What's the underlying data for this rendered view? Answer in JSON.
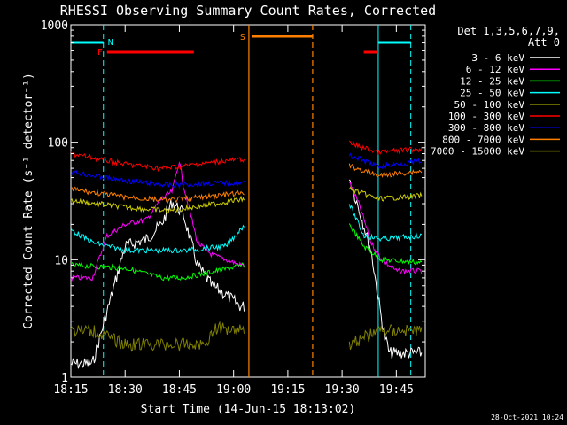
{
  "chart_data": {
    "type": "line",
    "title": "RHESSI Observing Summary Count Rates, Corrected",
    "xlabel": "Start Time (14-Jun-15 18:13:02)",
    "ylabel": "Corrected Count Rate (s⁻¹ detector⁻¹)",
    "y_scale": "log",
    "ylim": [
      1,
      1000
    ],
    "xlim": [
      "18:15",
      "19:53"
    ],
    "x_ticks": [
      "18:15",
      "18:30",
      "18:45",
      "19:00",
      "19:15",
      "19:30",
      "19:45"
    ],
    "y_ticks": [
      "1",
      "10",
      "100",
      "1000"
    ],
    "grid": false,
    "legend_position": "right",
    "legend_header": [
      "Det 1,3,5,6,7,9,",
      "Att 0"
    ],
    "timestamp": "28-Oct-2021 10:24",
    "annotations": [
      {
        "label": "N",
        "color": "#00ffff"
      },
      {
        "label": "F",
        "color": "#ff0000"
      },
      {
        "label": "S",
        "color": "#ff8000"
      }
    ],
    "data_gap": [
      "19:03",
      "19:32"
    ],
    "series": [
      {
        "name": "3 - 6 keV",
        "color": "#000000",
        "x": [
          "18:15",
          "18:21",
          "18:30",
          "18:33",
          "18:36",
          "18:40",
          "18:43",
          "18:46",
          "18:50",
          "18:54",
          "18:58",
          "19:02",
          "19:03",
          "19:32",
          "19:35",
          "19:38",
          "19:41",
          "19:43",
          "19:50",
          "19:52"
        ],
        "y": [
          1.3,
          1.3,
          13,
          14,
          15,
          20,
          31,
          25,
          9,
          6,
          5,
          4,
          4,
          50,
          25,
          12,
          3,
          1.6,
          1.6,
          1.6
        ]
      },
      {
        "name": "6 - 12 keV",
        "color": "#ff00ff",
        "x": [
          "18:15",
          "18:21",
          "18:25",
          "18:30",
          "18:33",
          "18:36",
          "18:40",
          "18:43",
          "18:45",
          "18:46",
          "18:50",
          "18:54",
          "18:58",
          "19:02",
          "19:03",
          "19:32",
          "19:35",
          "19:38",
          "19:41",
          "19:45",
          "19:52"
        ],
        "y": [
          7,
          7,
          16,
          20,
          21,
          22,
          33,
          38,
          70,
          45,
          14,
          11,
          10,
          9,
          9,
          46,
          28,
          14,
          10,
          8,
          8
        ]
      },
      {
        "name": "12 - 25 keV",
        "color": "#00ff00",
        "x": [
          "18:15",
          "18:30",
          "18:40",
          "18:46",
          "18:55",
          "19:03",
          "19:32",
          "19:36",
          "19:41",
          "19:52"
        ],
        "y": [
          9,
          8.5,
          7,
          7,
          8,
          9,
          20,
          13,
          10,
          9.5
        ]
      },
      {
        "name": "25 - 50 keV",
        "color": "#00ffff",
        "x": [
          "18:15",
          "18:21",
          "18:30",
          "18:40",
          "18:47",
          "18:58",
          "19:03",
          "19:32",
          "19:36",
          "19:41",
          "19:52"
        ],
        "y": [
          18,
          14,
          12,
          12,
          12,
          13,
          20,
          30,
          16,
          15,
          16
        ]
      },
      {
        "name": "50 - 100 keV",
        "color": "#cccc00",
        "x": [
          "18:15",
          "18:30",
          "18:42",
          "18:55",
          "19:03",
          "19:32",
          "19:40",
          "19:52"
        ],
        "y": [
          32,
          28,
          26,
          30,
          33,
          40,
          33,
          35
        ]
      },
      {
        "name": "100 - 300 keV",
        "color": "#ff0000",
        "x": [
          "18:15",
          "18:30",
          "18:40",
          "18:45",
          "18:48",
          "18:55",
          "19:03",
          "19:32",
          "19:40",
          "19:52"
        ],
        "y": [
          80,
          65,
          60,
          62,
          64,
          68,
          72,
          98,
          82,
          88
        ]
      },
      {
        "name": "300 - 800 keV",
        "color": "#0000ff",
        "x": [
          "18:15",
          "18:30",
          "18:42",
          "18:55",
          "19:03",
          "19:32",
          "19:40",
          "19:52"
        ],
        "y": [
          56,
          47,
          43,
          45,
          45,
          78,
          62,
          69
        ]
      },
      {
        "name": "800 - 7000 keV",
        "color": "#ff8000",
        "x": [
          "18:15",
          "18:30",
          "18:42",
          "18:55",
          "19:03",
          "19:32",
          "19:40",
          "19:52"
        ],
        "y": [
          40,
          34,
          32,
          35,
          37,
          63,
          52,
          57
        ]
      },
      {
        "name": "7000 - 15000 keV",
        "color": "#808000",
        "x": [
          "18:15",
          "18:21",
          "18:30",
          "18:45",
          "18:52",
          "18:55",
          "19:03",
          "19:32",
          "19:40",
          "19:52"
        ],
        "y": [
          2.5,
          2.5,
          1.9,
          1.9,
          1.9,
          2.6,
          2.6,
          1.9,
          2.5,
          2.5
        ]
      }
    ]
  }
}
